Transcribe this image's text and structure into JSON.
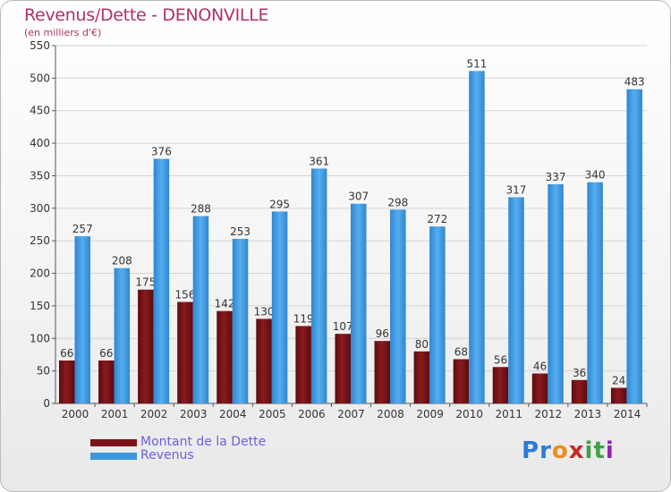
{
  "title": "Revenus/Dette - DENONVILLE",
  "subtitle": "(en milliers d'€)",
  "colors": {
    "dette": "#7a1418",
    "revenus": "#3d97dd",
    "title": "#b0306a",
    "legend_text": "#6a60e0",
    "grid": "#d0d0d0"
  },
  "legend": [
    {
      "label": "Montant de la Dette",
      "color": "#7a1418"
    },
    {
      "label": "Revenus",
      "color": "#3d97dd"
    }
  ],
  "logo": {
    "text": "Proxiti",
    "letter_colors": [
      "#2d7bd6",
      "#2d7bd6",
      "#ef8a1c",
      "#c62828",
      "#43a047",
      "#43a047",
      "#8e24aa"
    ]
  },
  "chart_data": {
    "type": "bar",
    "categories": [
      "2000",
      "2001",
      "2002",
      "2003",
      "2004",
      "2005",
      "2006",
      "2007",
      "2008",
      "2009",
      "2010",
      "2011",
      "2012",
      "2013",
      "2014"
    ],
    "series": [
      {
        "name": "Montant de la Dette",
        "values": [
          66,
          66,
          175,
          156,
          142,
          130,
          119,
          107,
          96,
          80,
          68,
          56,
          46,
          36,
          24
        ]
      },
      {
        "name": "Revenus",
        "values": [
          257,
          208,
          376,
          288,
          253,
          295,
          361,
          307,
          298,
          272,
          511,
          317,
          337,
          340,
          483
        ]
      }
    ],
    "ylim": [
      0,
      550
    ],
    "yticks": [
      0,
      50,
      100,
      150,
      200,
      250,
      300,
      350,
      400,
      450,
      500,
      550
    ],
    "grid": true,
    "legend_position": "bottom-left"
  }
}
